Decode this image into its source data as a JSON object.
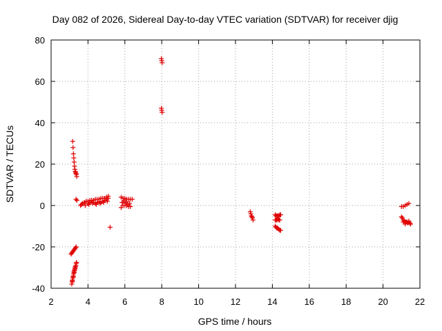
{
  "chart_data": {
    "type": "scatter",
    "title": "Day 082 of 2026, Sidereal Day-to-day VTEC variation (SDTVAR) for receiver djig",
    "xlabel": "GPS time / hours",
    "ylabel": "SDTVAR / TECUs",
    "xlim": [
      2,
      22
    ],
    "ylim": [
      -40,
      80
    ],
    "xticks": [
      2,
      4,
      6,
      8,
      10,
      12,
      14,
      16,
      18,
      20,
      22
    ],
    "yticks": [
      -40,
      -20,
      0,
      20,
      40,
      60,
      80
    ],
    "xtick_labels": [
      "2",
      "4",
      "6",
      "8",
      "10",
      "12",
      "14",
      "16",
      "18",
      "20",
      "22"
    ],
    "ytick_labels": [
      "-40",
      "-20",
      "0",
      "20",
      "40",
      "60",
      "80"
    ],
    "grid": true,
    "legend": "none",
    "marker": "plus",
    "color": "#e00000",
    "series": [
      {
        "x": [
          3.17,
          3.19,
          3.21,
          3.23,
          3.25,
          3.27,
          3.29,
          3.31,
          3.33,
          3.35,
          3.37,
          3.39,
          3.08,
          3.12,
          3.16,
          3.2,
          3.24,
          3.28,
          3.32,
          3.36,
          3.12,
          3.14,
          3.16,
          3.18,
          3.2,
          3.22,
          3.24,
          3.26,
          3.28,
          3.3,
          3.32,
          3.34,
          3.36,
          3.38,
          3.15,
          3.2,
          3.25,
          3.3,
          3.35,
          3.4,
          3.6,
          3.7,
          3.8,
          3.9,
          4.0,
          4.1,
          4.2,
          4.3,
          4.4,
          4.5,
          4.6,
          4.7,
          4.8,
          4.9,
          5.0,
          5.1,
          3.7,
          3.8,
          3.9,
          4.0,
          4.1,
          4.2,
          4.3,
          4.4,
          4.5,
          4.6,
          4.7,
          4.8,
          4.9,
          5.0,
          5.1,
          3.65,
          3.85,
          4.05,
          4.25,
          4.45,
          4.65,
          4.85,
          5.05,
          5.2,
          5.8,
          5.9,
          6.0,
          6.1,
          6.2,
          6.3,
          6.4,
          5.8,
          5.9,
          6.0,
          6.1,
          6.2,
          6.3,
          5.85,
          5.95,
          6.05,
          6.15,
          6.25,
          7.98,
          8.0,
          8.02,
          7.98,
          8.0,
          8.02,
          12.8,
          12.83,
          12.86,
          12.89,
          12.92,
          12.95,
          14.15,
          14.2,
          14.25,
          14.3,
          14.35,
          14.4,
          14.45,
          14.15,
          14.2,
          14.25,
          14.3,
          14.35,
          14.4,
          14.15,
          14.2,
          14.25,
          14.3,
          14.35,
          14.4,
          14.45,
          21.0,
          21.1,
          21.2,
          21.3,
          21.4,
          21.0,
          21.05,
          21.1,
          21.15,
          21.2,
          21.25,
          21.3,
          21.35,
          21.4,
          21.45,
          21.5,
          21.1,
          21.2,
          21.3,
          21.4
        ],
        "y": [
          31,
          28,
          25,
          23,
          21,
          19,
          17.5,
          16.5,
          16,
          15.5,
          15,
          14,
          -23.5,
          -23,
          -22.5,
          -22,
          -21.5,
          -21,
          -20.5,
          -20,
          -38,
          -37,
          -36,
          -35,
          -34,
          -33,
          -32,
          -31.5,
          -31,
          -30,
          -29.5,
          -29,
          -28,
          -27.5,
          -36.5,
          -34.5,
          -32.5,
          -30.5,
          3,
          2.5,
          0,
          1,
          1.5,
          2,
          2,
          2.5,
          2.5,
          2.5,
          3,
          3,
          3,
          3.5,
          3.5,
          3.5,
          4,
          4.5,
          1,
          1.5,
          2,
          1,
          1.5,
          2,
          1.5,
          1,
          1.5,
          2,
          1.5,
          2,
          2.5,
          3,
          3.5,
          0.5,
          0,
          0.5,
          1,
          0.5,
          1,
          1.5,
          2,
          -10.5,
          4,
          3.5,
          3.5,
          3,
          3,
          3,
          3,
          -1,
          0,
          0,
          0,
          -0.5,
          -0.5,
          1.5,
          2,
          1.5,
          1,
          1,
          71,
          70,
          69,
          47,
          46,
          45,
          -3,
          -4,
          -5,
          -5.5,
          -6,
          -7,
          -4.5,
          -5,
          -5,
          -5,
          -5,
          -4.5,
          -4.5,
          -7,
          -7,
          -7,
          -6.5,
          -7,
          -7,
          -10,
          -10.5,
          -11,
          -11,
          -11.5,
          -12,
          -12,
          -0.5,
          -0.5,
          0,
          0.5,
          1,
          -5.5,
          -6,
          -7,
          -7.5,
          -8,
          -8,
          -8,
          -8.5,
          -8,
          -8.5,
          -9,
          -8,
          -9,
          -8,
          -7.5
        ]
      }
    ]
  }
}
